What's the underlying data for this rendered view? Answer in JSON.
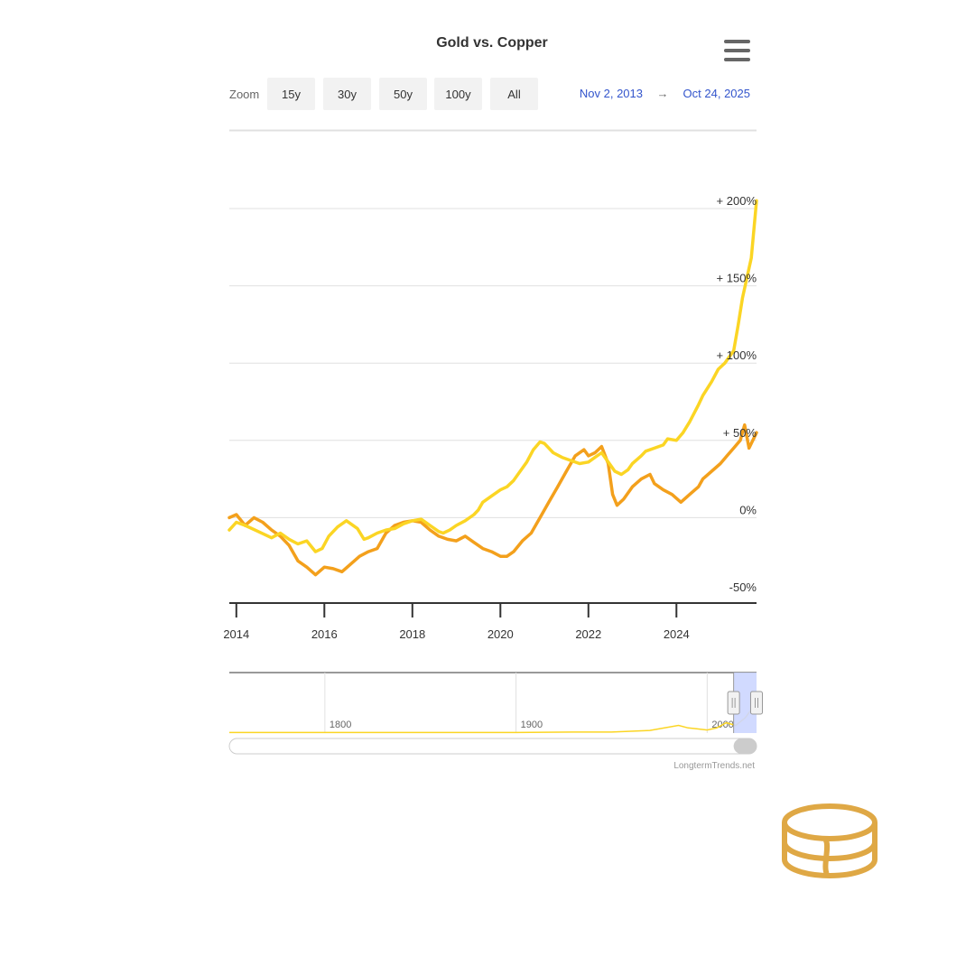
{
  "title": "Gold vs. Copper",
  "zoom": {
    "label": "Zoom",
    "buttons": [
      "15y",
      "30y",
      "50y",
      "100y",
      "All"
    ]
  },
  "range": {
    "from": "Nov 2, 2013",
    "arrow": "→",
    "to": "Oct 24, 2025"
  },
  "credit": "LongtermTrends.net",
  "colors": {
    "gold": "#fbd524",
    "copper": "#f3a01c",
    "navigator_mask": "#ccd6ff",
    "logo": "#dfa845"
  },
  "icons": {
    "menu": "hamburger-menu-icon",
    "logo": "stacked-coins-logo-icon"
  },
  "chart_data": {
    "type": "line",
    "title": "Gold vs. Copper",
    "xlabel": "",
    "ylabel": "",
    "x_range": [
      2013.84,
      2025.82
    ],
    "ylim": [
      -50,
      200
    ],
    "y_ticks": [
      -50,
      0,
      50,
      100,
      150,
      200
    ],
    "y_tick_labels": [
      "-50%",
      "0%",
      "+ 50%",
      "+ 100%",
      "+ 150%",
      "+ 200%"
    ],
    "x_ticks": [
      2014,
      2016,
      2018,
      2020,
      2022,
      2024
    ],
    "grid": true,
    "legend": "none",
    "series": [
      {
        "key": "gold",
        "x": [
          2013.84,
          2014.0,
          2014.2,
          2014.5,
          2014.8,
          2015.0,
          2015.2,
          2015.4,
          2015.6,
          2015.8,
          2015.95,
          2016.1,
          2016.3,
          2016.5,
          2016.6,
          2016.75,
          2016.9,
          2017.0,
          2017.2,
          2017.4,
          2017.6,
          2017.8,
          2018.0,
          2018.2,
          2018.4,
          2018.6,
          2018.7,
          2018.85,
          2019.0,
          2019.2,
          2019.4,
          2019.5,
          2019.6,
          2019.8,
          2020.0,
          2020.15,
          2020.3,
          2020.45,
          2020.6,
          2020.75,
          2020.9,
          2021.0,
          2021.2,
          2021.4,
          2021.6,
          2021.8,
          2022.0,
          2022.15,
          2022.3,
          2022.5,
          2022.6,
          2022.75,
          2022.9,
          2023.0,
          2023.2,
          2023.3,
          2023.5,
          2023.7,
          2023.8,
          2024.0,
          2024.15,
          2024.3,
          2024.5,
          2024.6,
          2024.8,
          2024.95,
          2025.1,
          2025.3,
          2025.4,
          2025.5,
          2025.6,
          2025.7,
          2025.82
        ],
        "y": [
          -8,
          -3,
          -5,
          -9,
          -13,
          -10,
          -14,
          -17,
          -15,
          -22,
          -20,
          -12,
          -6,
          -2,
          -4,
          -7,
          -14,
          -13,
          -10,
          -8,
          -7,
          -4,
          -2,
          -1,
          -5,
          -9,
          -10,
          -8,
          -5,
          -2,
          2,
          5,
          10,
          14,
          18,
          20,
          24,
          30,
          36,
          44,
          49,
          48,
          42,
          39,
          37,
          35,
          36,
          39,
          42,
          34,
          30,
          28,
          31,
          35,
          40,
          43,
          45,
          47,
          51,
          50,
          55,
          62,
          73,
          79,
          88,
          96,
          100,
          108,
          124,
          142,
          155,
          168,
          205
        ]
      },
      {
        "key": "copper",
        "x": [
          2013.84,
          2014.0,
          2014.2,
          2014.4,
          2014.6,
          2014.8,
          2015.0,
          2015.2,
          2015.4,
          2015.6,
          2015.8,
          2016.0,
          2016.2,
          2016.4,
          2016.6,
          2016.8,
          2017.0,
          2017.2,
          2017.4,
          2017.6,
          2017.8,
          2018.0,
          2018.2,
          2018.4,
          2018.6,
          2018.8,
          2019.0,
          2019.2,
          2019.4,
          2019.6,
          2019.8,
          2020.0,
          2020.15,
          2020.3,
          2020.5,
          2020.7,
          2020.9,
          2021.1,
          2021.3,
          2021.5,
          2021.7,
          2021.9,
          2022.0,
          2022.15,
          2022.3,
          2022.45,
          2022.55,
          2022.65,
          2022.8,
          2023.0,
          2023.2,
          2023.4,
          2023.5,
          2023.7,
          2023.9,
          2024.1,
          2024.3,
          2024.5,
          2024.6,
          2024.8,
          2025.0,
          2025.15,
          2025.3,
          2025.45,
          2025.55,
          2025.65,
          2025.82
        ],
        "y": [
          0,
          2,
          -5,
          0,
          -3,
          -8,
          -12,
          -18,
          -28,
          -32,
          -37,
          -32,
          -33,
          -35,
          -30,
          -25,
          -22,
          -20,
          -10,
          -5,
          -3,
          -2,
          -3,
          -8,
          -12,
          -14,
          -15,
          -12,
          -16,
          -20,
          -22,
          -25,
          -25,
          -22,
          -15,
          -10,
          0,
          10,
          20,
          30,
          40,
          44,
          40,
          42,
          46,
          35,
          15,
          8,
          12,
          20,
          25,
          28,
          22,
          18,
          15,
          10,
          15,
          20,
          25,
          30,
          35,
          40,
          45,
          50,
          60,
          45,
          55
        ]
      }
    ]
  },
  "navigator": {
    "ticks": [
      "1800",
      "1900",
      "2000"
    ],
    "x_range": [
      1750,
      2025.82
    ],
    "selection": [
      2013.84,
      2025.82
    ],
    "series": {
      "x": [
        1750,
        1800,
        1850,
        1900,
        1930,
        1950,
        1970,
        1985,
        1990,
        1995,
        2000,
        2005,
        2010,
        2015,
        2020,
        2025.82
      ],
      "y": [
        0.01,
        0.01,
        0.01,
        0.01,
        0.02,
        0.02,
        0.05,
        0.15,
        0.1,
        0.08,
        0.06,
        0.1,
        0.2,
        0.15,
        0.3,
        0.6
      ]
    }
  }
}
